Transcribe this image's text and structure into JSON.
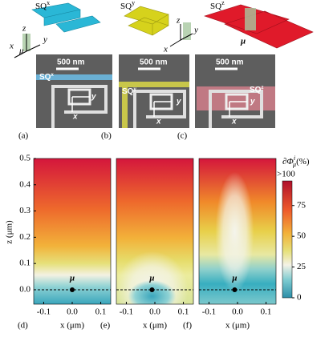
{
  "top": {
    "panels": [
      {
        "label": "(a)",
        "sq": "SQ",
        "sq_sup": "x"
      },
      {
        "label": "(b)",
        "sq": "SQ",
        "sq_sup": "y"
      },
      {
        "label": "(c)",
        "sq": "SQ",
        "sq_sup": "z"
      }
    ],
    "scale_bar": "500 nm",
    "axis_x": "x",
    "axis_y": "y",
    "axis_z": "z",
    "mu": "μ"
  },
  "plots": {
    "xlabel": "x (μm)",
    "ylabel": "z (μm)",
    "xlim": [
      -0.135,
      0.135
    ],
    "ylim": [
      -0.055,
      0.5
    ],
    "xticks": [
      -0.1,
      {
        "value": 0,
        "label": "0.0"
      },
      0.1
    ],
    "yticks": [
      {
        "value": 0,
        "label": "0.0"
      },
      0.1,
      0.2,
      0.3,
      0.4,
      0.5
    ],
    "mu": "μ",
    "panels": [
      {
        "label": "(d)",
        "dipole": {
          "x": 0,
          "z": 0
        }
      },
      {
        "label": "(e)",
        "dipole": {
          "x": -0.01,
          "z": 0
        }
      },
      {
        "label": "(f)",
        "dipole": {
          "x": -0.01,
          "z": 0
        }
      }
    ]
  },
  "colorbar": {
    "title": "∂Φ",
    "title_sup": "i",
    "title_sub": "μ",
    "unit": "(%)",
    "top_label": ">100",
    "lim": [
      0,
      95
    ],
    "ticks": [
      0,
      25,
      50,
      75
    ]
  }
}
